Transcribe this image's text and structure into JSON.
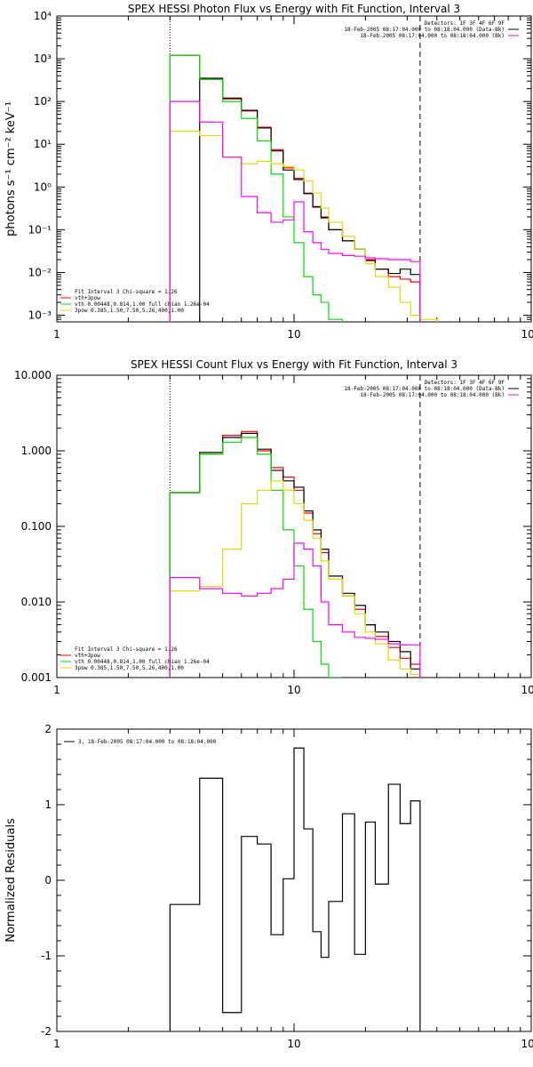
{
  "colors": {
    "total": "#000000",
    "vth_3pow": "#ff0000",
    "vth": "#00dd00",
    "pow": "#dddd00",
    "bk": "#ff00ff"
  },
  "chart_data": [
    {
      "type": "line",
      "title": "SPEX HESSI Photon Flux vs Energy with Fit Function, Interval 3",
      "ylabel": "photons s⁻¹ cm⁻² keV⁻¹",
      "xlabel": "",
      "xscale": "log",
      "yscale": "log",
      "xlim": [
        1,
        100
      ],
      "ylim": [
        0.0007,
        10000
      ],
      "xticks": [
        1,
        10,
        100
      ],
      "xtick_labels": [
        "1",
        "10",
        "100"
      ],
      "yticks": [
        0.001,
        0.01,
        0.1,
        1,
        10,
        100,
        1000,
        10000
      ],
      "ytick_labels": [
        "10⁻³",
        "10⁻²",
        "10⁻¹",
        "10⁰",
        "10¹",
        "10²",
        "10³",
        "10⁴"
      ],
      "vlines": [
        {
          "x": 3.0,
          "style": "dotted"
        },
        {
          "x": 34,
          "style": "dashed"
        }
      ],
      "header_lines": [
        "Detectors: 1F 3F 4F 6F 9F",
        "18-Feb-2005 08:17:04.000 to 08:18:04.000 (Data-Bk)",
        "18-Feb-2005 08:17:04.000 to 08:18:04.000 (Bk)"
      ],
      "legend_lines": [
        "Fit Interval 3   Chi-square = 1.26",
        "vth+3pow",
        "vth 0.00448,0.814,1.00  full chian 1.26e-04",
        "3pow 0.385,1.50,7.50,5.26,400,1.00"
      ],
      "bin_edges": [
        3,
        4,
        5,
        6,
        7,
        8,
        9,
        10,
        11,
        12,
        13,
        14,
        16,
        18,
        20,
        22,
        25,
        28,
        31,
        34,
        40
      ],
      "series": [
        {
          "name": "vth+3pow",
          "color_key": "vth_3pow",
          "values": [
            1200,
            330,
            115,
            60,
            25,
            7.5,
            2.8,
            1.6,
            0.72,
            0.35,
            0.2,
            0.1,
            0.055,
            0.035,
            0.02,
            0.012,
            0.008,
            0.007,
            0.006,
            null
          ]
        },
        {
          "name": "Data-Bk",
          "color_key": "total",
          "values": [
            null,
            350,
            120,
            62,
            24,
            7,
            2.5,
            1.5,
            0.7,
            0.34,
            0.19,
            0.1,
            0.055,
            0.035,
            0.019,
            0.012,
            0.0095,
            0.012,
            0.009,
            null
          ]
        },
        {
          "name": "vth",
          "color_key": "vth",
          "values": [
            1200,
            330,
            100,
            40,
            12,
            2,
            0.2,
            0.05,
            0.008,
            0.003,
            0.002,
            0.0008,
            null,
            null,
            null,
            null,
            null,
            null,
            null,
            null
          ]
        },
        {
          "name": "3pow",
          "color_key": "pow",
          "values": [
            20,
            16,
            5,
            3.5,
            4,
            3.5,
            3,
            2.5,
            1.4,
            0.72,
            0.32,
            0.15,
            0.07,
            0.035,
            0.016,
            0.008,
            0.0045,
            0.002,
            0.001,
            0.0008
          ]
        },
        {
          "name": "Bk",
          "color_key": "bk",
          "values": [
            100,
            33,
            5,
            0.6,
            0.25,
            0.15,
            0.17,
            0.45,
            0.09,
            0.05,
            0.035,
            0.028,
            0.025,
            0.024,
            0.022,
            0.021,
            0.02,
            0.02,
            0.018,
            null
          ]
        }
      ]
    },
    {
      "type": "line",
      "title": "SPEX HESSI Count Flux vs Energy with Fit Function, Interval 3",
      "ylabel": "",
      "xlabel": "",
      "xscale": "log",
      "yscale": "log",
      "xlim": [
        1,
        100
      ],
      "ylim": [
        0.001,
        10
      ],
      "xticks": [
        1,
        10,
        100
      ],
      "xtick_labels": [
        "1",
        "10",
        "100"
      ],
      "yticks": [
        0.001,
        0.01,
        0.1,
        1,
        10
      ],
      "ytick_labels": [
        "0.001",
        "0.010",
        "0.100",
        "1.000",
        "10.000"
      ],
      "vlines": [
        {
          "x": 3.0,
          "style": "dotted"
        },
        {
          "x": 34,
          "style": "dashed"
        }
      ],
      "header_lines": [
        "Detectors: 1F 3F 4F 6F 9F",
        "18-Feb-2005 08:17:04.000 to 08:18:04.000 (Data-Bk)",
        "18-Feb-2005 08:17:04.000 to 08:18:04.000 (Bk)"
      ],
      "legend_lines": [
        "Fit Interval 3   Chi-square = 1.26",
        "vth+3pow",
        "vth 0.00448,0.814,1.00  full chian 1.26e-04",
        "3pow 0.385,1.50,7.50,5.26,400,1.00"
      ],
      "bin_edges": [
        3,
        4,
        5,
        6,
        7,
        8,
        9,
        10,
        11,
        12,
        13,
        14,
        16,
        18,
        20,
        22,
        25,
        28,
        31,
        34
      ],
      "series": [
        {
          "name": "vth+3pow",
          "color_key": "vth_3pow",
          "values": [
            0.28,
            0.9,
            1.6,
            1.8,
            1.0,
            0.6,
            0.45,
            0.3,
            0.15,
            0.08,
            0.045,
            0.02,
            0.012,
            0.008,
            0.005,
            0.0035,
            0.0025,
            0.0018,
            0.0015
          ]
        },
        {
          "name": "Data-Bk",
          "color_key": "total",
          "values": [
            0.28,
            0.95,
            1.5,
            1.7,
            1.05,
            0.55,
            0.4,
            0.33,
            0.16,
            0.09,
            0.05,
            0.022,
            0.013,
            0.009,
            0.005,
            0.004,
            0.003,
            0.0022,
            0.0013
          ]
        },
        {
          "name": "vth",
          "color_key": "vth",
          "values": [
            0.28,
            0.9,
            1.3,
            1.5,
            0.9,
            0.3,
            0.09,
            0.03,
            0.008,
            0.003,
            0.0015,
            0.001,
            null,
            null,
            null,
            null,
            null,
            null,
            null
          ]
        },
        {
          "name": "3pow",
          "color_key": "pow",
          "values": [
            0.014,
            0.016,
            0.05,
            0.2,
            0.3,
            0.4,
            0.3,
            0.2,
            0.12,
            0.07,
            0.035,
            0.02,
            0.012,
            0.007,
            0.004,
            0.0028,
            0.0017,
            0.0013,
            0.0011
          ]
        },
        {
          "name": "Bk",
          "color_key": "bk",
          "values": [
            0.021,
            0.015,
            0.013,
            0.012,
            0.013,
            0.015,
            0.02,
            0.06,
            0.05,
            0.03,
            0.01,
            0.005,
            0.004,
            0.0034,
            0.0033,
            0.0032,
            0.0028,
            0.0027,
            0.0027
          ]
        }
      ]
    },
    {
      "type": "line",
      "title": "",
      "ylabel": "Normalized Residuals",
      "xlabel": "",
      "xscale": "log",
      "yscale": "linear",
      "xlim": [
        1,
        100
      ],
      "ylim": [
        -2,
        2
      ],
      "xticks": [
        1,
        10,
        100
      ],
      "xtick_labels": [
        "1",
        "10",
        "100"
      ],
      "yticks": [
        -2,
        -1,
        0,
        1,
        2
      ],
      "ytick_labels": [
        "-2",
        "-1",
        "0",
        "1",
        "2"
      ],
      "legend_lines": [
        "3, 18-Feb-2005 08:17:04.000 to 08:18:04.000"
      ],
      "bin_edges": [
        3,
        4,
        5,
        6,
        7,
        8,
        9,
        10,
        11,
        12,
        13,
        14,
        16,
        18,
        20,
        22,
        25,
        28,
        31,
        34
      ],
      "series": [
        {
          "name": "3, 18-Feb-2005 08:17:04.000 to 08:18:04.000",
          "color_key": "total",
          "values": [
            -0.32,
            1.35,
            -1.75,
            0.58,
            0.48,
            -0.72,
            0.02,
            1.75,
            0.68,
            -0.68,
            -1.02,
            -0.28,
            0.88,
            -0.98,
            0.77,
            -0.05,
            1.27,
            0.75,
            1.05
          ],
          "drop_at_end_to": -2
        }
      ]
    }
  ]
}
